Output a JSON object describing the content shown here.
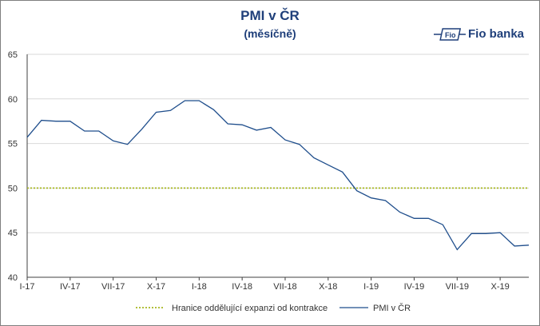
{
  "chart_data": {
    "type": "line",
    "title": "PMI v ČR",
    "subtitle": "(měsíčně)",
    "brand": "Fio banka",
    "xlabel": "",
    "ylabel": "",
    "ylim": [
      40,
      65
    ],
    "yticks": [
      40,
      45,
      50,
      55,
      60,
      65
    ],
    "x_tick_labels": [
      "I-17",
      "IV-17",
      "VII-17",
      "X-17",
      "I-18",
      "IV-18",
      "VII-18",
      "X-18",
      "I-19",
      "IV-19",
      "VII-19",
      "X-19"
    ],
    "x_tick_months": [
      "2017-01",
      "2017-04",
      "2017-07",
      "2017-10",
      "2018-01",
      "2018-04",
      "2018-07",
      "2018-10",
      "2019-01",
      "2019-04",
      "2019-07",
      "2019-10"
    ],
    "grid": true,
    "legend_position": "bottom",
    "x": [
      "2017-01",
      "2017-02",
      "2017-03",
      "2017-04",
      "2017-05",
      "2017-06",
      "2017-07",
      "2017-08",
      "2017-09",
      "2017-10",
      "2017-11",
      "2017-12",
      "2018-01",
      "2018-02",
      "2018-03",
      "2018-04",
      "2018-05",
      "2018-06",
      "2018-07",
      "2018-08",
      "2018-09",
      "2018-10",
      "2018-11",
      "2018-12",
      "2019-01",
      "2019-02",
      "2019-03",
      "2019-04",
      "2019-05",
      "2019-06",
      "2019-07",
      "2019-08",
      "2019-09",
      "2019-10",
      "2019-11",
      "2019-12"
    ],
    "series": [
      {
        "name": "Hranice oddělující expanzi od kontrakce",
        "style": "dotted",
        "color": "#a8b820",
        "values": [
          50,
          50,
          50,
          50,
          50,
          50,
          50,
          50,
          50,
          50,
          50,
          50,
          50,
          50,
          50,
          50,
          50,
          50,
          50,
          50,
          50,
          50,
          50,
          50,
          50,
          50,
          50,
          50,
          50,
          50,
          50,
          50,
          50,
          50,
          50,
          50
        ]
      },
      {
        "name": "PMI v ČR",
        "style": "solid",
        "color": "#1f4e8c",
        "values": [
          55.7,
          57.6,
          57.5,
          57.5,
          56.4,
          56.4,
          55.3,
          54.9,
          56.6,
          58.5,
          58.7,
          59.8,
          59.8,
          58.8,
          57.2,
          57.1,
          56.5,
          56.8,
          55.4,
          54.9,
          53.4,
          52.6,
          51.8,
          49.7,
          48.9,
          48.6,
          47.3,
          46.6,
          46.6,
          45.9,
          43.1,
          44.9,
          44.9,
          45.0,
          43.5,
          43.6
        ]
      }
    ]
  }
}
